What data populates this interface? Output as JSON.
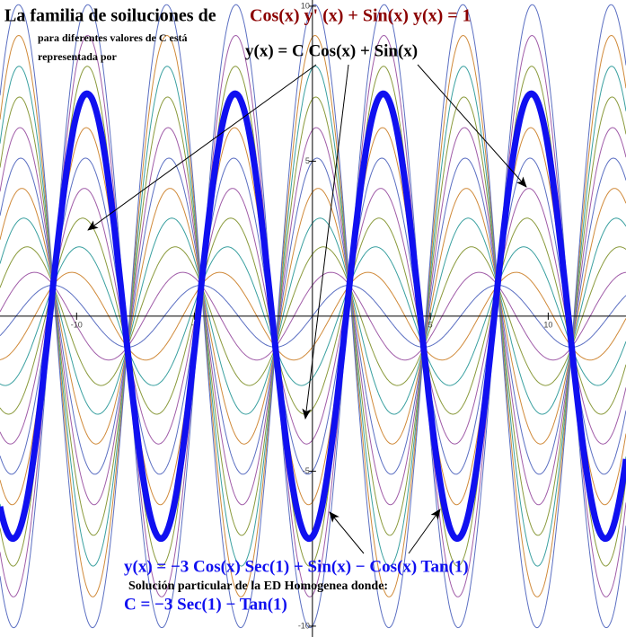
{
  "chart_data": {
    "type": "function-family",
    "title": "La familia de soiluciones de",
    "equation": "Cos(x) y' (x) + Sin(x) y(x) = 1",
    "subtitle_lines": [
      "para diferentes valores de C está",
      "representada por"
    ],
    "family_formula": "y(x) = C Cos(x) + Sin(x)",
    "particular_formula": "y(x) = −3 Cos(x) Sec(1) + Sin(x) − Cos(x) Tan(1)",
    "particular_note": "Solución particular de la ED Homogenea donde:",
    "particular_constant": "C = −3 Sec(1) − Tan(1)",
    "xlim": [
      -13.25,
      13.3
    ],
    "ylim": [
      -10.35,
      10.2
    ],
    "xticks": [
      -10,
      -5,
      5,
      10
    ],
    "yticks": [
      -10,
      -5,
      5,
      10
    ],
    "family": [
      {
        "C": -10,
        "color": "#5b6fc2"
      },
      {
        "C": -9,
        "color": "#a05ca8"
      },
      {
        "C": -8,
        "color": "#8a9a3c"
      },
      {
        "C": -7,
        "color": "#3aa0a0"
      },
      {
        "C": -6,
        "color": "#d08a3a"
      },
      {
        "C": -5,
        "color": "#5b6fc2"
      },
      {
        "C": -4,
        "color": "#a05ca8"
      },
      {
        "C": -3,
        "color": "#8a9a3c"
      },
      {
        "C": -2,
        "color": "#3aa0a0"
      },
      {
        "C": -1,
        "color": "#d08a3a"
      },
      {
        "C": 0,
        "color": "#5b6fc2"
      },
      {
        "C": 1,
        "color": "#a05ca8"
      },
      {
        "C": 2,
        "color": "#8a9a3c"
      },
      {
        "C": 3,
        "color": "#3aa0a0"
      },
      {
        "C": 4,
        "color": "#d08a3a"
      },
      {
        "C": 5,
        "color": "#5b6fc2"
      },
      {
        "C": 6,
        "color": "#a05ca8"
      },
      {
        "C": 7,
        "color": "#8a9a3c"
      },
      {
        "C": 8,
        "color": "#3aa0a0"
      },
      {
        "C": 9,
        "color": "#d08a3a"
      },
      {
        "C": 10,
        "color": "#5b6fc2"
      }
    ],
    "particular": {
      "C": -7.11,
      "color": "#1010f0"
    }
  }
}
